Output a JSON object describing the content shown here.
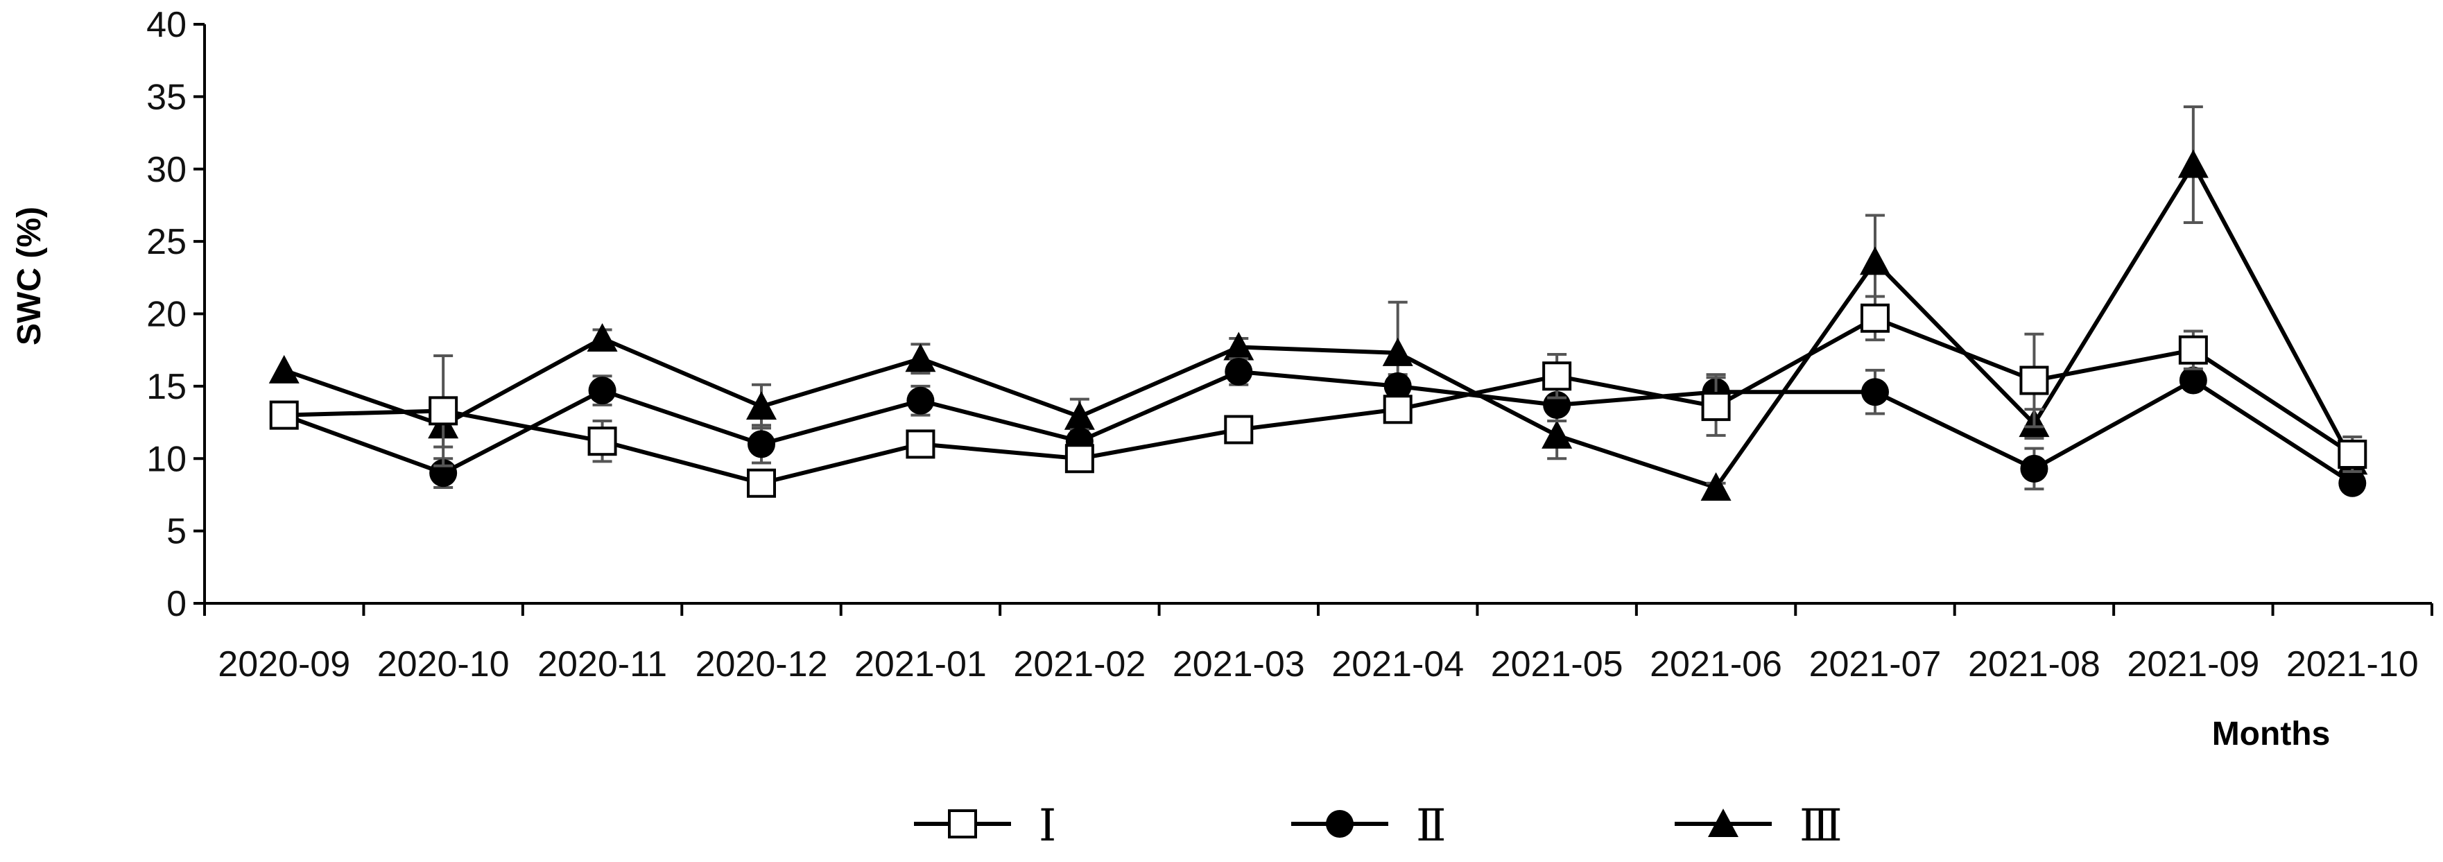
{
  "chart_data": {
    "type": "line",
    "title": "",
    "xlabel": "Months",
    "ylabel": "SWC (%)",
    "ylim": [
      0,
      40
    ],
    "yticks": [
      0,
      5,
      10,
      15,
      20,
      25,
      30,
      35,
      40
    ],
    "categories": [
      "2020-09",
      "2020-10",
      "2020-11",
      "2020-12",
      "2021-01",
      "2021-02",
      "2021-03",
      "2021-04",
      "2021-05",
      "2021-06",
      "2021-07",
      "2021-08",
      "2021-09",
      "2021-10"
    ],
    "grid": false,
    "legend_position": "bottom",
    "series": [
      {
        "name": "Ⅰ",
        "marker": "square-open",
        "x": [
          0.5,
          1.5,
          2.5,
          3.5,
          4.5,
          5.5,
          6.5,
          7.5,
          8.5,
          9.5,
          10.5,
          11.5,
          12.5,
          13.5
        ],
        "values": [
          13,
          13.3,
          11.2,
          8.3,
          11,
          10,
          12,
          13.4,
          15.7,
          13.6,
          19.7,
          15.4,
          17.5,
          10.3
        ],
        "error": [
          0,
          3.8,
          1.4,
          0.6,
          0.6,
          0.5,
          0.4,
          0.6,
          1.5,
          2.0,
          1.5,
          3.2,
          1.3,
          1.2
        ]
      },
      {
        "name": "Ⅱ",
        "marker": "circle-filled",
        "x": [
          0.5,
          1.5,
          2.5,
          3.5,
          4.5,
          5.5,
          6.5,
          7.5,
          8.5,
          9.5,
          10.5,
          11.5,
          12.5,
          13.5
        ],
        "values": [
          13,
          9,
          14.7,
          11,
          14,
          11.2,
          16,
          15,
          13.7,
          14.6,
          14.6,
          9.3,
          15.4,
          8.3
        ],
        "error": [
          0,
          1.0,
          1.0,
          1.3,
          1.0,
          0.8,
          0.9,
          0.8,
          1.1,
          1.2,
          1.5,
          1.4,
          0.5,
          0.5
        ]
      },
      {
        "name": "Ⅲ",
        "marker": "triangle-filled",
        "x": [
          0.5,
          1.5,
          2.5,
          3.5,
          4.5,
          5.5,
          6.5,
          7.5,
          8.5,
          9.5,
          10.5,
          11.5,
          12.5,
          13.5
        ],
        "values": [
          16.1,
          12.3,
          18.3,
          13.6,
          16.9,
          12.9,
          17.7,
          17.3,
          11.6,
          8,
          23.6,
          12.4,
          30.3,
          9.8
        ],
        "error": [
          0,
          1.5,
          0.6,
          1.5,
          1.0,
          1.2,
          0.6,
          3.5,
          1.6,
          0.3,
          3.2,
          1.0,
          4.0,
          0.6
        ]
      }
    ]
  }
}
